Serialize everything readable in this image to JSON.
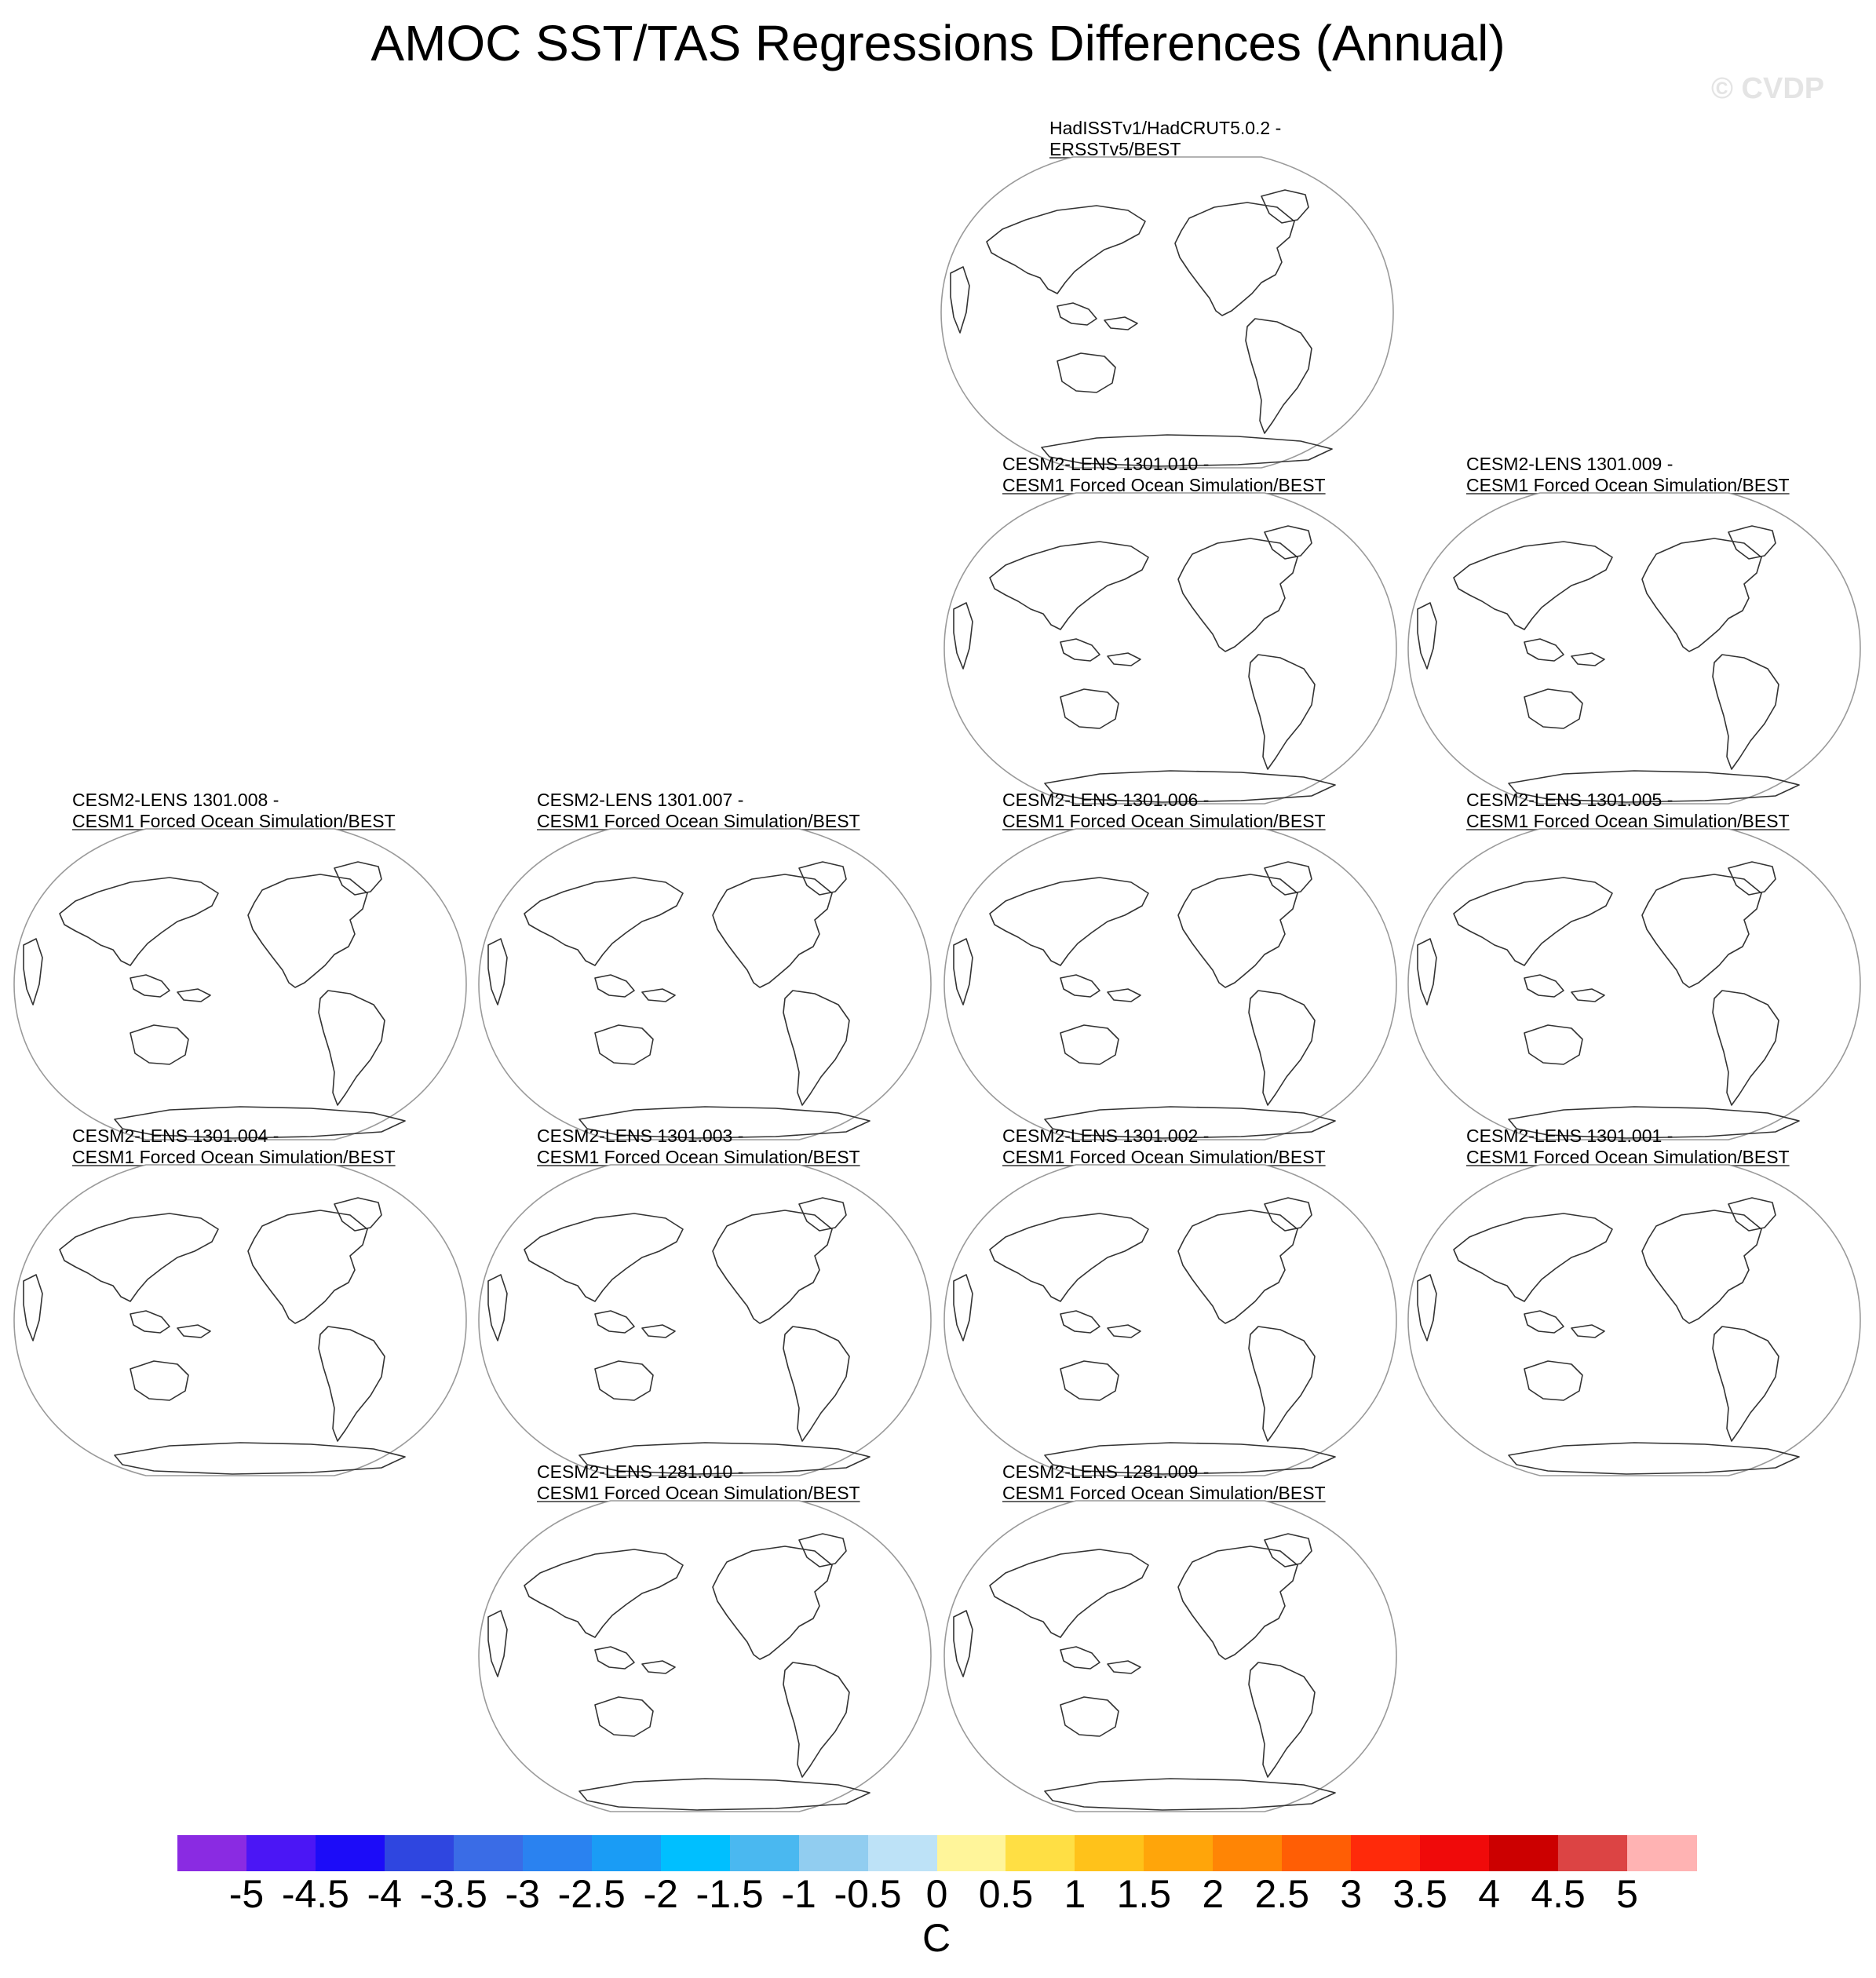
{
  "title": "AMOC SST/TAS Regressions Differences (Annual)",
  "watermark": "© CVDP",
  "panels": [
    {
      "line1": "HadISSTv1/HadCRUT5.0.2 -",
      "line2": "ERSSTv5/BEST"
    },
    {
      "line1": "CESM2-LENS 1301.010 -",
      "line2": "CESM1 Forced Ocean Simulation/BEST"
    },
    {
      "line1": "CESM2-LENS 1301.009 -",
      "line2": "CESM1 Forced Ocean Simulation/BEST"
    },
    {
      "line1": "CESM2-LENS 1301.008 -",
      "line2": "CESM1 Forced Ocean Simulation/BEST"
    },
    {
      "line1": "CESM2-LENS 1301.007 -",
      "line2": "CESM1 Forced Ocean Simulation/BEST"
    },
    {
      "line1": "CESM2-LENS 1301.006 -",
      "line2": "CESM1 Forced Ocean Simulation/BEST"
    },
    {
      "line1": "CESM2-LENS 1301.005 -",
      "line2": "CESM1 Forced Ocean Simulation/BEST"
    },
    {
      "line1": "CESM2-LENS 1301.004 -",
      "line2": "CESM1 Forced Ocean Simulation/BEST"
    },
    {
      "line1": "CESM2-LENS 1301.003 -",
      "line2": "CESM1 Forced Ocean Simulation/BEST"
    },
    {
      "line1": "CESM2-LENS 1301.002 -",
      "line2": "CESM1 Forced Ocean Simulation/BEST"
    },
    {
      "line1": "CESM2-LENS 1301.001 -",
      "line2": "CESM1 Forced Ocean Simulation/BEST"
    },
    {
      "line1": "CESM2-LENS 1281.010 -",
      "line2": "CESM1 Forced Ocean Simulation/BEST"
    },
    {
      "line1": "CESM2-LENS 1281.009 -",
      "line2": "CESM1 Forced Ocean Simulation/BEST"
    }
  ],
  "colorbar": {
    "colors": [
      "#8a2be2",
      "#4b16f5",
      "#1c0cf8",
      "#2f46e0",
      "#3a6ce6",
      "#2a82f0",
      "#1a9cf5",
      "#00bfff",
      "#4ab8f0",
      "#91cdf0",
      "#bde2f7",
      "#fff59a",
      "#ffdf44",
      "#ffc21a",
      "#ffa50a",
      "#ff8505",
      "#ff5e05",
      "#ff2a0a",
      "#f00a0a",
      "#cc0000",
      "#dc4444",
      "#ffb3b3"
    ],
    "ticks": [
      "-5",
      "-4.5",
      "-4",
      "-3.5",
      "-3",
      "-2.5",
      "-2",
      "-1.5",
      "-1",
      "-0.5",
      "0",
      "0.5",
      "1",
      "1.5",
      "2",
      "2.5",
      "3",
      "3.5",
      "4",
      "4.5",
      "5"
    ],
    "unit": "C"
  }
}
